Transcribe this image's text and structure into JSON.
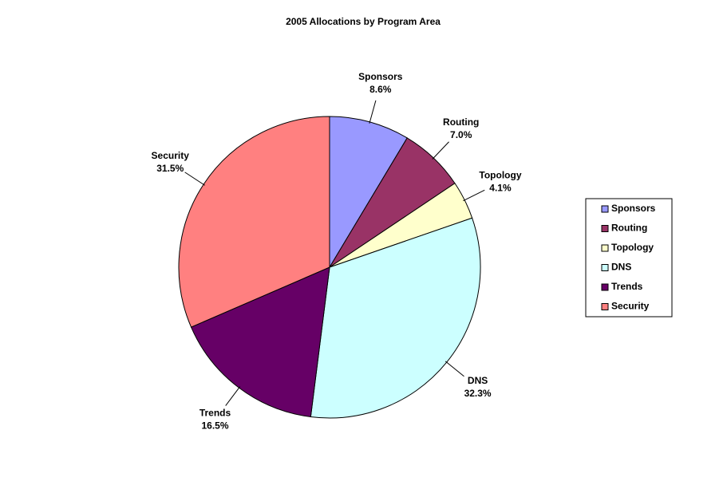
{
  "chart_data": {
    "type": "pie",
    "title": "2005 Allocations by Program Area",
    "categories": [
      "Sponsors",
      "Routing",
      "Topology",
      "DNS",
      "Trends",
      "Security"
    ],
    "values": [
      8.6,
      7.0,
      4.1,
      32.3,
      16.5,
      31.5
    ],
    "value_labels": [
      "8.6%",
      "7.0%",
      "4.1%",
      "32.3%",
      "16.5%",
      "31.5%"
    ],
    "colors": [
      "#9999FF",
      "#993366",
      "#FFFFCC",
      "#CCFFFF",
      "#660066",
      "#FF8080"
    ],
    "legend": "right"
  }
}
